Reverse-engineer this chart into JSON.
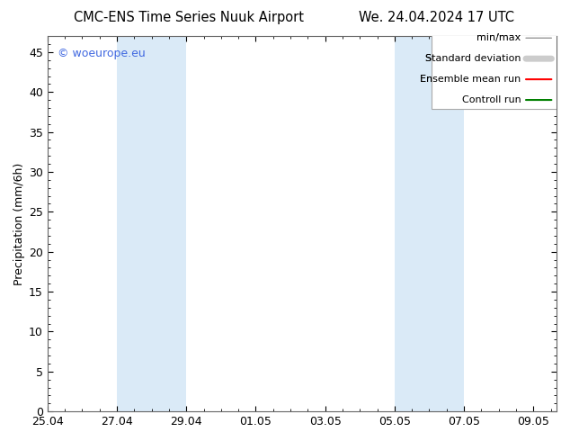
{
  "title_left": "CMC-ENS Time Series Nuuk Airport",
  "title_right": "We. 24.04.2024 17 UTC",
  "ylabel": "Precipitation (mm/6h)",
  "ylim": [
    0,
    47
  ],
  "yticks": [
    0,
    5,
    10,
    15,
    20,
    25,
    30,
    35,
    40,
    45
  ],
  "xlim": [
    0,
    14.667
  ],
  "xtick_labels": [
    "25.04",
    "27.04",
    "29.04",
    "01.05",
    "03.05",
    "05.05",
    "07.05",
    "09.05"
  ],
  "xtick_positions": [
    0,
    2,
    4,
    6,
    8,
    10,
    12,
    14
  ],
  "shaded_regions": [
    {
      "x_start": 2,
      "x_end": 4
    },
    {
      "x_start": 10,
      "x_end": 11
    },
    {
      "x_start": 11,
      "x_end": 12
    }
  ],
  "shade_color": "#daeaf7",
  "background_color": "#ffffff",
  "plot_bg_color": "#ffffff",
  "watermark_text": "© woeurope.eu",
  "watermark_color": "#4169e1",
  "legend_entries": [
    {
      "label": "min/max",
      "color": "#999999",
      "lw": 1.0
    },
    {
      "label": "Standard deviation",
      "color": "#cccccc",
      "lw": 5.0
    },
    {
      "label": "Ensemble mean run",
      "color": "#ff0000",
      "lw": 1.5
    },
    {
      "label": "Controll run",
      "color": "#008000",
      "lw": 1.5
    }
  ],
  "font_size": 9,
  "title_font_size": 10.5,
  "watermark_font_size": 9
}
